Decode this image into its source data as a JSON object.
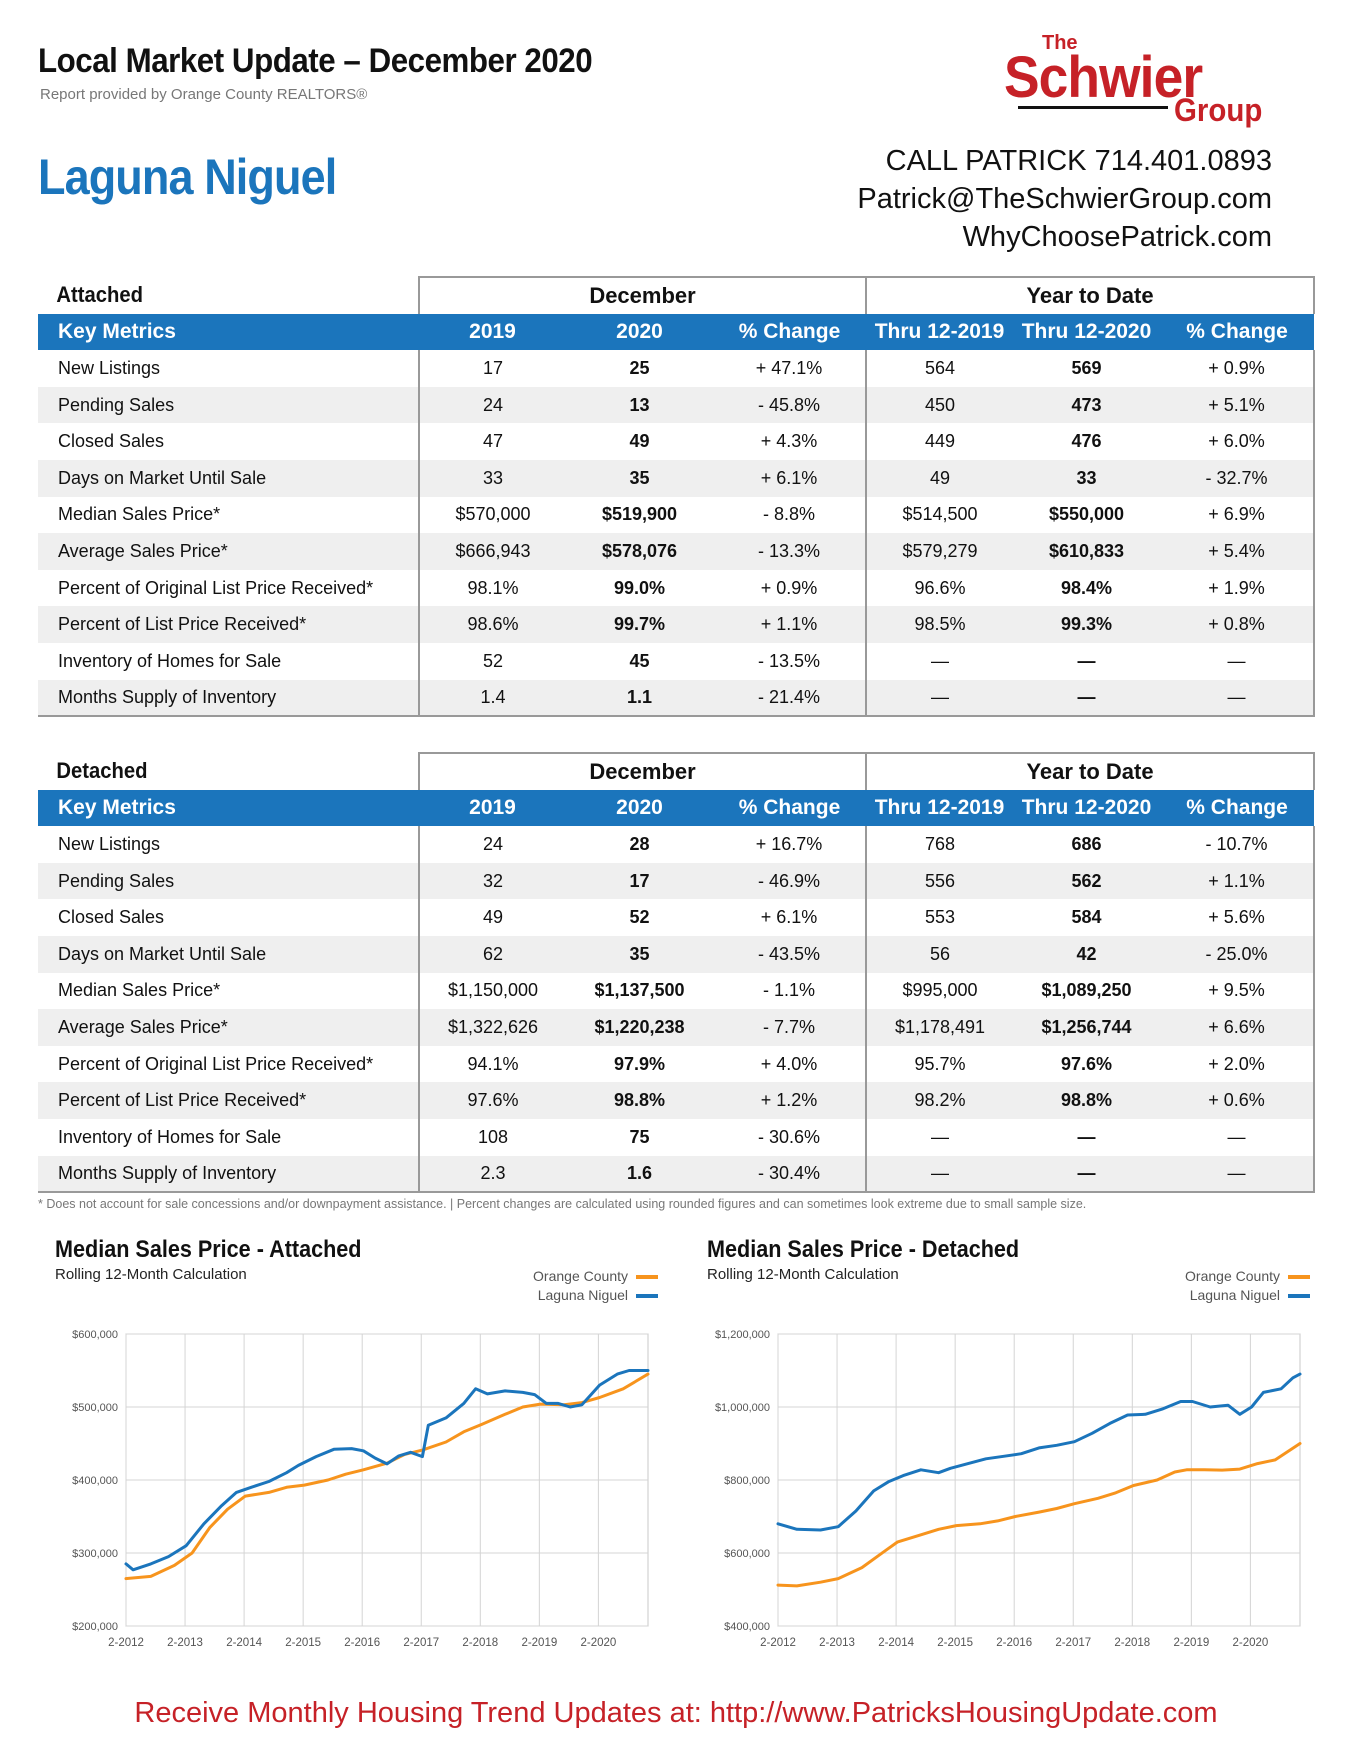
{
  "header": {
    "title": "Local Market Update – December 2020",
    "subtitle": "Report provided by Orange County REALTORS®",
    "city": "Laguna Niguel"
  },
  "logo": {
    "the": "The",
    "name": "Schwier",
    "group": "Group"
  },
  "contact": {
    "phone": "CALL PATRICK 714.401.0893",
    "email": "Patrick@TheSchwierGroup.com",
    "website": "WhyChoosePatrick.com"
  },
  "table_headers": {
    "group_december": "December",
    "group_ytd": "Year to Date",
    "key_metrics": "Key Metrics",
    "col_2019": "2019",
    "col_2020": "2020",
    "col_change": "% Change",
    "col_thru2019": "Thru 12-2019",
    "col_thru2020": "Thru 12-2020",
    "col_ytd_change": "% Change"
  },
  "attached": {
    "title": "Attached",
    "rows": [
      [
        "New Listings",
        "17",
        "25",
        "+ 47.1%",
        "564",
        "569",
        "+ 0.9%"
      ],
      [
        "Pending Sales",
        "24",
        "13",
        "- 45.8%",
        "450",
        "473",
        "+ 5.1%"
      ],
      [
        "Closed Sales",
        "47",
        "49",
        "+ 4.3%",
        "449",
        "476",
        "+ 6.0%"
      ],
      [
        "Days on Market Until Sale",
        "33",
        "35",
        "+ 6.1%",
        "49",
        "33",
        "- 32.7%"
      ],
      [
        "Median Sales Price*",
        "$570,000",
        "$519,900",
        "- 8.8%",
        "$514,500",
        "$550,000",
        "+ 6.9%"
      ],
      [
        "Average Sales Price*",
        "$666,943",
        "$578,076",
        "- 13.3%",
        "$579,279",
        "$610,833",
        "+ 5.4%"
      ],
      [
        "Percent of Original List Price Received*",
        "98.1%",
        "99.0%",
        "+ 0.9%",
        "96.6%",
        "98.4%",
        "+ 1.9%"
      ],
      [
        "Percent of List Price Received*",
        "98.6%",
        "99.7%",
        "+ 1.1%",
        "98.5%",
        "99.3%",
        "+ 0.8%"
      ],
      [
        "Inventory of Homes for Sale",
        "52",
        "45",
        "- 13.5%",
        "—",
        "—",
        "—"
      ],
      [
        "Months Supply of Inventory",
        "1.4",
        "1.1",
        "- 21.4%",
        "—",
        "—",
        "—"
      ]
    ]
  },
  "detached": {
    "title": "Detached",
    "rows": [
      [
        "New Listings",
        "24",
        "28",
        "+ 16.7%",
        "768",
        "686",
        "- 10.7%"
      ],
      [
        "Pending Sales",
        "32",
        "17",
        "- 46.9%",
        "556",
        "562",
        "+ 1.1%"
      ],
      [
        "Closed Sales",
        "49",
        "52",
        "+ 6.1%",
        "553",
        "584",
        "+ 5.6%"
      ],
      [
        "Days on Market Until Sale",
        "62",
        "35",
        "- 43.5%",
        "56",
        "42",
        "- 25.0%"
      ],
      [
        "Median Sales Price*",
        "$1,150,000",
        "$1,137,500",
        "- 1.1%",
        "$995,000",
        "$1,089,250",
        "+ 9.5%"
      ],
      [
        "Average Sales Price*",
        "$1,322,626",
        "$1,220,238",
        "- 7.7%",
        "$1,178,491",
        "$1,256,744",
        "+ 6.6%"
      ],
      [
        "Percent of Original List Price Received*",
        "94.1%",
        "97.9%",
        "+ 4.0%",
        "95.7%",
        "97.6%",
        "+ 2.0%"
      ],
      [
        "Percent of List Price Received*",
        "97.6%",
        "98.8%",
        "+ 1.2%",
        "98.2%",
        "98.8%",
        "+ 0.6%"
      ],
      [
        "Inventory of Homes for Sale",
        "108",
        "75",
        "- 30.6%",
        "—",
        "—",
        "—"
      ],
      [
        "Months Supply of Inventory",
        "2.3",
        "1.6",
        "- 30.4%",
        "—",
        "—",
        "—"
      ]
    ]
  },
  "footnote": "* Does not account for sale concessions and/or downpayment assistance.  |  Percent changes are calculated using rounded figures and can sometimes look extreme due to small sample size.",
  "colors": {
    "orange_county": "#f7941d",
    "laguna_niguel": "#1b75bc",
    "header_blue": "#1b75bc",
    "brand_red": "#c62127"
  },
  "chart_data": [
    {
      "type": "line",
      "title": "Median Sales Price - Attached",
      "subtitle": "Rolling 12-Month Calculation",
      "x_ticks": [
        "2-2012",
        "2-2013",
        "2-2014",
        "2-2015",
        "2-2016",
        "2-2017",
        "2-2018",
        "2-2019",
        "2-2020"
      ],
      "y_ticks": [
        "$200,000",
        "$300,000",
        "$400,000",
        "$500,000",
        "$600,000"
      ],
      "ylim": [
        200000,
        600000
      ],
      "xlim": [
        2012.08,
        2020.92
      ],
      "grid": true,
      "legend": "top-right",
      "series": [
        {
          "name": "Orange County",
          "color": "#f7941d",
          "points": [
            [
              2012.08,
              265000
            ],
            [
              2012.5,
              268000
            ],
            [
              2012.9,
              283000
            ],
            [
              2013.2,
              300000
            ],
            [
              2013.5,
              335000
            ],
            [
              2013.8,
              360000
            ],
            [
              2014.1,
              378000
            ],
            [
              2014.5,
              383000
            ],
            [
              2014.8,
              390000
            ],
            [
              2015.1,
              393000
            ],
            [
              2015.5,
              400000
            ],
            [
              2015.8,
              408000
            ],
            [
              2016.1,
              414000
            ],
            [
              2016.5,
              423000
            ],
            [
              2016.8,
              435000
            ],
            [
              2017.1,
              441000
            ],
            [
              2017.5,
              452000
            ],
            [
              2017.8,
              466000
            ],
            [
              2018.1,
              476000
            ],
            [
              2018.5,
              490000
            ],
            [
              2018.8,
              500000
            ],
            [
              2019.1,
              504000
            ],
            [
              2019.5,
              503000
            ],
            [
              2019.8,
              506000
            ],
            [
              2020.1,
              513000
            ],
            [
              2020.5,
              525000
            ],
            [
              2020.92,
              545000
            ]
          ]
        },
        {
          "name": "Laguna Niguel",
          "color": "#1b75bc",
          "points": [
            [
              2012.08,
              285000
            ],
            [
              2012.2,
              277000
            ],
            [
              2012.5,
              285000
            ],
            [
              2012.8,
              295000
            ],
            [
              2013.1,
              310000
            ],
            [
              2013.4,
              340000
            ],
            [
              2013.7,
              365000
            ],
            [
              2013.95,
              383000
            ],
            [
              2014.2,
              390000
            ],
            [
              2014.5,
              398000
            ],
            [
              2014.8,
              410000
            ],
            [
              2015.0,
              420000
            ],
            [
              2015.3,
              432000
            ],
            [
              2015.6,
              442000
            ],
            [
              2015.9,
              443000
            ],
            [
              2016.1,
              440000
            ],
            [
              2016.3,
              430000
            ],
            [
              2016.5,
              422000
            ],
            [
              2016.7,
              433000
            ],
            [
              2016.9,
              438000
            ],
            [
              2017.1,
              432000
            ],
            [
              2017.2,
              475000
            ],
            [
              2017.5,
              485000
            ],
            [
              2017.8,
              505000
            ],
            [
              2018.0,
              525000
            ],
            [
              2018.2,
              518000
            ],
            [
              2018.5,
              522000
            ],
            [
              2018.8,
              520000
            ],
            [
              2019.0,
              517000
            ],
            [
              2019.2,
              505000
            ],
            [
              2019.4,
              505000
            ],
            [
              2019.6,
              500000
            ],
            [
              2019.8,
              503000
            ],
            [
              2020.1,
              530000
            ],
            [
              2020.4,
              545000
            ],
            [
              2020.6,
              550000
            ],
            [
              2020.92,
              550000
            ]
          ]
        }
      ]
    },
    {
      "type": "line",
      "title": "Median Sales Price - Detached",
      "subtitle": "Rolling 12-Month Calculation",
      "x_ticks": [
        "2-2012",
        "2-2013",
        "2-2014",
        "2-2015",
        "2-2016",
        "2-2017",
        "2-2018",
        "2-2019",
        "2-2020"
      ],
      "y_ticks": [
        "$400,000",
        "$600,000",
        "$800,000",
        "$1,000,000",
        "$1,200,000"
      ],
      "ylim": [
        400000,
        1200000
      ],
      "xlim": [
        2012.08,
        2020.92
      ],
      "grid": true,
      "legend": "top-right",
      "series": [
        {
          "name": "Orange County",
          "color": "#f7941d",
          "points": [
            [
              2012.08,
              512000
            ],
            [
              2012.4,
              510000
            ],
            [
              2012.8,
              520000
            ],
            [
              2013.1,
              530000
            ],
            [
              2013.5,
              560000
            ],
            [
              2013.8,
              595000
            ],
            [
              2014.1,
              630000
            ],
            [
              2014.5,
              650000
            ],
            [
              2014.8,
              665000
            ],
            [
              2015.1,
              675000
            ],
            [
              2015.5,
              680000
            ],
            [
              2015.8,
              688000
            ],
            [
              2016.1,
              700000
            ],
            [
              2016.5,
              712000
            ],
            [
              2016.8,
              722000
            ],
            [
              2017.1,
              735000
            ],
            [
              2017.5,
              750000
            ],
            [
              2017.8,
              765000
            ],
            [
              2018.1,
              785000
            ],
            [
              2018.5,
              800000
            ],
            [
              2018.8,
              822000
            ],
            [
              2019.0,
              828000
            ],
            [
              2019.3,
              828000
            ],
            [
              2019.6,
              827000
            ],
            [
              2019.9,
              830000
            ],
            [
              2020.2,
              845000
            ],
            [
              2020.5,
              855000
            ],
            [
              2020.92,
              900000
            ]
          ]
        },
        {
          "name": "Laguna Niguel",
          "color": "#1b75bc",
          "points": [
            [
              2012.08,
              680000
            ],
            [
              2012.4,
              665000
            ],
            [
              2012.8,
              663000
            ],
            [
              2013.1,
              672000
            ],
            [
              2013.4,
              715000
            ],
            [
              2013.7,
              770000
            ],
            [
              2013.95,
              795000
            ],
            [
              2014.2,
              812000
            ],
            [
              2014.5,
              828000
            ],
            [
              2014.8,
              820000
            ],
            [
              2015.0,
              832000
            ],
            [
              2015.3,
              845000
            ],
            [
              2015.6,
              858000
            ],
            [
              2015.9,
              865000
            ],
            [
              2016.2,
              872000
            ],
            [
              2016.5,
              888000
            ],
            [
              2016.8,
              895000
            ],
            [
              2017.1,
              905000
            ],
            [
              2017.4,
              928000
            ],
            [
              2017.7,
              955000
            ],
            [
              2018.0,
              978000
            ],
            [
              2018.3,
              980000
            ],
            [
              2018.6,
              995000
            ],
            [
              2018.9,
              1015000
            ],
            [
              2019.1,
              1015000
            ],
            [
              2019.4,
              1000000
            ],
            [
              2019.7,
              1005000
            ],
            [
              2019.9,
              980000
            ],
            [
              2020.1,
              1000000
            ],
            [
              2020.3,
              1040000
            ],
            [
              2020.6,
              1050000
            ],
            [
              2020.8,
              1080000
            ],
            [
              2020.92,
              1090000
            ]
          ]
        }
      ]
    }
  ],
  "bottom_banner": "Receive Monthly Housing Trend Updates at:  http://www.PatricksHousingUpdate.com"
}
